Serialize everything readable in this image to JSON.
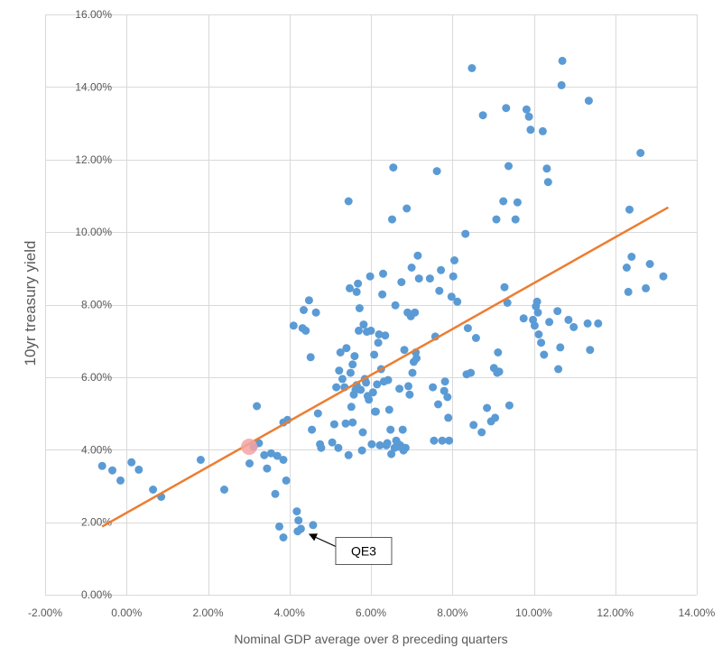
{
  "chart_data": {
    "type": "scatter",
    "title": "",
    "xlabel": "Nominal GDP average over 8 preceding quarters",
    "ylabel": "10yr treasury yield",
    "xlim": [
      -0.02,
      0.14
    ],
    "ylim": [
      0,
      0.16
    ],
    "x_ticks": [
      -0.02,
      0,
      0.02,
      0.04,
      0.06,
      0.08,
      0.1,
      0.12,
      0.14
    ],
    "y_ticks": [
      0,
      0.02,
      0.04,
      0.06,
      0.08,
      0.1,
      0.12,
      0.14,
      0.16
    ],
    "x_tick_labels": [
      "-2.00%",
      "0.00%",
      "2.00%",
      "4.00%",
      "6.00%",
      "8.00%",
      "10.00%",
      "12.00%",
      "14.00%"
    ],
    "y_tick_labels": [
      "0.00%",
      "2.00%",
      "4.00%",
      "6.00%",
      "8.00%",
      "10.00%",
      "12.00%",
      "14.00%",
      "16.00%"
    ],
    "grid": true,
    "point_color": "#5b9bd5",
    "trend_color": "#ed7d31",
    "highlight_color": "#f4a3a3",
    "trendline": {
      "x": [
        -0.006,
        0.133
      ],
      "y": [
        0.0188,
        0.1068
      ]
    },
    "highlight_point": {
      "x": 0.0301,
      "y": 0.0408
    },
    "annotation": {
      "text": "QE3",
      "x": 0.0447,
      "y": 0.0168
    },
    "points": [
      [
        -0.006,
        0.0355
      ],
      [
        -0.0035,
        0.0343
      ],
      [
        -0.0015,
        0.0315
      ],
      [
        0.0012,
        0.0365
      ],
      [
        0.003,
        0.0345
      ],
      [
        0.0065,
        0.029
      ],
      [
        0.0085,
        0.027
      ],
      [
        0.0182,
        0.0372
      ],
      [
        0.024,
        0.029
      ],
      [
        0.0302,
        0.0362
      ],
      [
        0.0312,
        0.0408
      ],
      [
        0.032,
        0.052
      ],
      [
        0.0325,
        0.0418
      ],
      [
        0.0338,
        0.0385
      ],
      [
        0.0345,
        0.0348
      ],
      [
        0.0355,
        0.039
      ],
      [
        0.0365,
        0.0278
      ],
      [
        0.037,
        0.0383
      ],
      [
        0.0375,
        0.0188
      ],
      [
        0.0385,
        0.0372
      ],
      [
        0.0385,
        0.0475
      ],
      [
        0.0385,
        0.0158
      ],
      [
        0.0392,
        0.0315
      ],
      [
        0.0395,
        0.0482
      ],
      [
        0.041,
        0.0742
      ],
      [
        0.0418,
        0.023
      ],
      [
        0.0422,
        0.0205
      ],
      [
        0.042,
        0.0175
      ],
      [
        0.0428,
        0.0182
      ],
      [
        0.0432,
        0.0735
      ],
      [
        0.0435,
        0.0785
      ],
      [
        0.044,
        0.0728
      ],
      [
        0.0448,
        0.0812
      ],
      [
        0.0452,
        0.0655
      ],
      [
        0.0455,
        0.0455
      ],
      [
        0.0458,
        0.0192
      ],
      [
        0.0465,
        0.0778
      ],
      [
        0.047,
        0.05
      ],
      [
        0.0475,
        0.0415
      ],
      [
        0.0478,
        0.0405
      ],
      [
        0.0505,
        0.042
      ],
      [
        0.051,
        0.047
      ],
      [
        0.0515,
        0.0572
      ],
      [
        0.052,
        0.0405
      ],
      [
        0.0522,
        0.0618
      ],
      [
        0.0525,
        0.0668
      ],
      [
        0.053,
        0.0595
      ],
      [
        0.0535,
        0.0572
      ],
      [
        0.0538,
        0.0472
      ],
      [
        0.054,
        0.068
      ],
      [
        0.0545,
        0.0385
      ],
      [
        0.0545,
        0.1085
      ],
      [
        0.0548,
        0.0845
      ],
      [
        0.055,
        0.0612
      ],
      [
        0.0552,
        0.0518
      ],
      [
        0.0555,
        0.0475
      ],
      [
        0.0555,
        0.0635
      ],
      [
        0.0558,
        0.0552
      ],
      [
        0.056,
        0.0658
      ],
      [
        0.0562,
        0.0565
      ],
      [
        0.0565,
        0.0578
      ],
      [
        0.0565,
        0.0835
      ],
      [
        0.0568,
        0.0858
      ],
      [
        0.057,
        0.0728
      ],
      [
        0.0572,
        0.079
      ],
      [
        0.0575,
        0.0565
      ],
      [
        0.0578,
        0.0398
      ],
      [
        0.058,
        0.0448
      ],
      [
        0.0582,
        0.0745
      ],
      [
        0.0585,
        0.0595
      ],
      [
        0.0588,
        0.0585
      ],
      [
        0.059,
        0.0725
      ],
      [
        0.0592,
        0.0548
      ],
      [
        0.0595,
        0.0538
      ],
      [
        0.0598,
        0.0878
      ],
      [
        0.06,
        0.0728
      ],
      [
        0.0602,
        0.0415
      ],
      [
        0.0605,
        0.0558
      ],
      [
        0.0608,
        0.0662
      ],
      [
        0.061,
        0.0505
      ],
      [
        0.0612,
        0.0505
      ],
      [
        0.0615,
        0.058
      ],
      [
        0.0618,
        0.0695
      ],
      [
        0.062,
        0.0718
      ],
      [
        0.0622,
        0.0412
      ],
      [
        0.0625,
        0.0622
      ],
      [
        0.0628,
        0.0828
      ],
      [
        0.063,
        0.0885
      ],
      [
        0.0632,
        0.0588
      ],
      [
        0.0635,
        0.0715
      ],
      [
        0.0638,
        0.0412
      ],
      [
        0.064,
        0.0418
      ],
      [
        0.0642,
        0.0592
      ],
      [
        0.0645,
        0.051
      ],
      [
        0.0648,
        0.0455
      ],
      [
        0.065,
        0.0388
      ],
      [
        0.0652,
        0.1035
      ],
      [
        0.0655,
        0.1178
      ],
      [
        0.0658,
        0.0405
      ],
      [
        0.066,
        0.0798
      ],
      [
        0.0662,
        0.0425
      ],
      [
        0.0665,
        0.0418
      ],
      [
        0.0668,
        0.0408
      ],
      [
        0.067,
        0.0568
      ],
      [
        0.0672,
        0.0412
      ],
      [
        0.0675,
        0.0862
      ],
      [
        0.0678,
        0.0455
      ],
      [
        0.068,
        0.0398
      ],
      [
        0.0682,
        0.0675
      ],
      [
        0.0685,
        0.0405
      ],
      [
        0.0688,
        0.1065
      ],
      [
        0.069,
        0.0778
      ],
      [
        0.0692,
        0.0575
      ],
      [
        0.0695,
        0.0552
      ],
      [
        0.0698,
        0.0768
      ],
      [
        0.07,
        0.0902
      ],
      [
        0.0702,
        0.0612
      ],
      [
        0.0705,
        0.0642
      ],
      [
        0.0708,
        0.0778
      ],
      [
        0.071,
        0.0668
      ],
      [
        0.0712,
        0.0652
      ],
      [
        0.0715,
        0.0935
      ],
      [
        0.0718,
        0.0872
      ],
      [
        0.0745,
        0.0872
      ],
      [
        0.0752,
        0.0572
      ],
      [
        0.0755,
        0.0425
      ],
      [
        0.0758,
        0.0712
      ],
      [
        0.0762,
        0.1168
      ],
      [
        0.0765,
        0.0525
      ],
      [
        0.0768,
        0.0838
      ],
      [
        0.0772,
        0.0895
      ],
      [
        0.0775,
        0.0425
      ],
      [
        0.078,
        0.0562
      ],
      [
        0.0782,
        0.0588
      ],
      [
        0.0788,
        0.0545
      ],
      [
        0.079,
        0.0488
      ],
      [
        0.0792,
        0.0425
      ],
      [
        0.0798,
        0.0822
      ],
      [
        0.0802,
        0.0878
      ],
      [
        0.0805,
        0.0922
      ],
      [
        0.0812,
        0.0808
      ],
      [
        0.0832,
        0.0995
      ],
      [
        0.0835,
        0.0608
      ],
      [
        0.0838,
        0.0735
      ],
      [
        0.0845,
        0.0612
      ],
      [
        0.0848,
        0.1452
      ],
      [
        0.0852,
        0.0468
      ],
      [
        0.0858,
        0.0708
      ],
      [
        0.0872,
        0.0448
      ],
      [
        0.0875,
        0.1322
      ],
      [
        0.0885,
        0.0515
      ],
      [
        0.0895,
        0.0478
      ],
      [
        0.0902,
        0.0625
      ],
      [
        0.0905,
        0.0488
      ],
      [
        0.0908,
        0.1035
      ],
      [
        0.091,
        0.0612
      ],
      [
        0.0912,
        0.0668
      ],
      [
        0.0915,
        0.0615
      ],
      [
        0.0925,
        0.1085
      ],
      [
        0.0928,
        0.0848
      ],
      [
        0.0932,
        0.1342
      ],
      [
        0.0935,
        0.0805
      ],
      [
        0.0938,
        0.1182
      ],
      [
        0.094,
        0.0522
      ],
      [
        0.0955,
        0.1035
      ],
      [
        0.096,
        0.1082
      ],
      [
        0.0975,
        0.0762
      ],
      [
        0.0982,
        0.1338
      ],
      [
        0.0988,
        0.1318
      ],
      [
        0.0992,
        0.1282
      ],
      [
        0.0998,
        0.0758
      ],
      [
        0.1002,
        0.0742
      ],
      [
        0.1005,
        0.0795
      ],
      [
        0.1008,
        0.0808
      ],
      [
        0.101,
        0.0778
      ],
      [
        0.1012,
        0.0718
      ],
      [
        0.1018,
        0.0695
      ],
      [
        0.1022,
        0.1278
      ],
      [
        0.1025,
        0.0662
      ],
      [
        0.1032,
        0.1175
      ],
      [
        0.1035,
        0.1138
      ],
      [
        0.1038,
        0.0752
      ],
      [
        0.1058,
        0.0782
      ],
      [
        0.106,
        0.0622
      ],
      [
        0.1065,
        0.0682
      ],
      [
        0.1068,
        0.1405
      ],
      [
        0.107,
        0.1472
      ],
      [
        0.1085,
        0.0758
      ],
      [
        0.1098,
        0.0738
      ],
      [
        0.1132,
        0.0748
      ],
      [
        0.1135,
        0.1362
      ],
      [
        0.1138,
        0.0675
      ],
      [
        0.1158,
        0.0748
      ],
      [
        0.1228,
        0.0902
      ],
      [
        0.1232,
        0.0835
      ],
      [
        0.1235,
        0.1062
      ],
      [
        0.124,
        0.0932
      ],
      [
        0.1262,
        0.1218
      ],
      [
        0.1275,
        0.0845
      ],
      [
        0.1285,
        0.0912
      ],
      [
        0.1318,
        0.0878
      ]
    ]
  }
}
